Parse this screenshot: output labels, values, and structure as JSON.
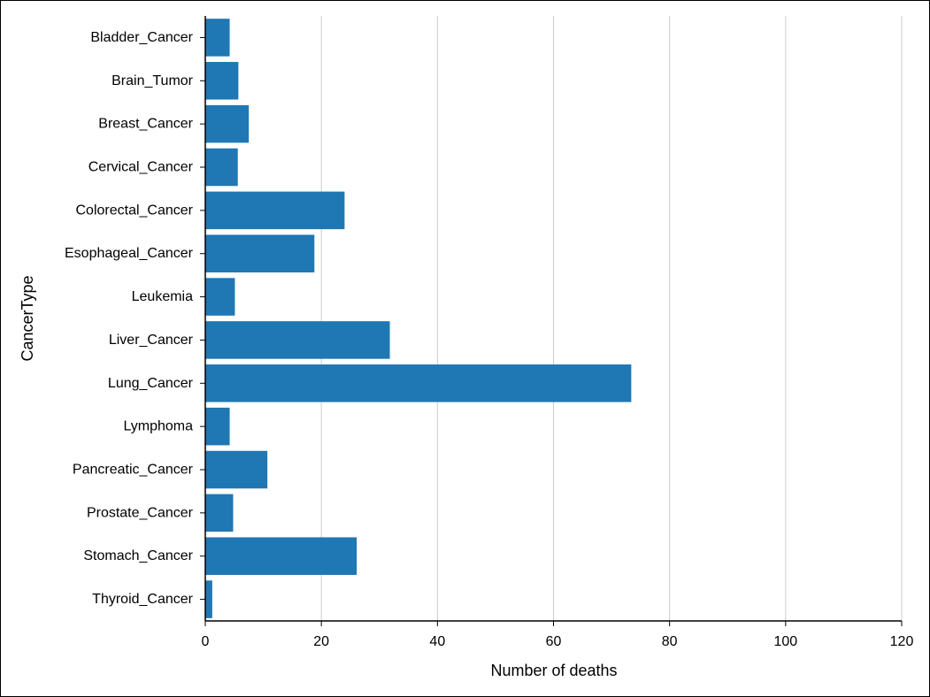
{
  "chart_data": {
    "type": "bar",
    "orientation": "horizontal",
    "categories": [
      "Bladder_Cancer",
      "Brain_Tumor",
      "Breast_Cancer",
      "Cervical_Cancer",
      "Colorectal_Cancer",
      "Esophageal_Cancer",
      "Leukemia",
      "Liver_Cancer",
      "Lung_Cancer",
      "Lymphoma",
      "Pancreatic_Cancer",
      "Prostate_Cancer",
      "Stomach_Cancer",
      "Thyroid_Cancer"
    ],
    "values": [
      4.2,
      5.7,
      7.5,
      5.6,
      24,
      18.8,
      5.1,
      31.8,
      73.4,
      4.2,
      10.7,
      4.8,
      26.1,
      1.2
    ],
    "xlabel": "Number of deaths",
    "ylabel": "CancerType",
    "xlim": [
      0,
      120
    ],
    "xticks": [
      0,
      20,
      40,
      60,
      80,
      100,
      120
    ],
    "grid": "vertical",
    "bar_color": "#1f77b4",
    "grid_color": "#cccccc"
  }
}
